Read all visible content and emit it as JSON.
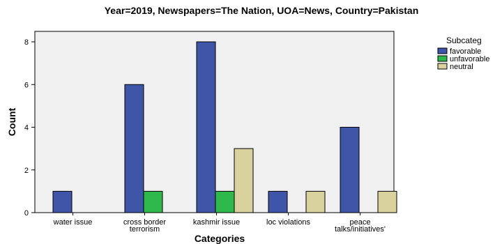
{
  "chart_data": {
    "type": "bar",
    "title": "Year=2019, Newspapers=The Nation, UOA=News, Country=Pakistan",
    "xlabel": "Categories",
    "ylabel": "Count",
    "ylim": [
      0,
      8
    ],
    "yticks": [
      0,
      2,
      4,
      6,
      8
    ],
    "categories": [
      [
        "water issue"
      ],
      [
        "cross border",
        "terrorism"
      ],
      [
        "kashmir issue"
      ],
      [
        "loc violations"
      ],
      [
        "peace",
        "talks/initiatives'"
      ]
    ],
    "series": [
      {
        "name": "favorable",
        "color": "#3f55a8",
        "values": [
          1,
          6,
          8,
          1,
          4
        ]
      },
      {
        "name": "unfavorable",
        "color": "#2fb84b",
        "values": [
          0,
          1,
          1,
          0,
          0
        ]
      },
      {
        "name": "neutral",
        "color": "#d9d29f",
        "values": [
          0,
          0,
          3,
          1,
          1
        ]
      }
    ],
    "legend": {
      "title": "Subcateg",
      "placement": "right"
    },
    "plot_background": "#f0f0f0",
    "grid": false
  }
}
